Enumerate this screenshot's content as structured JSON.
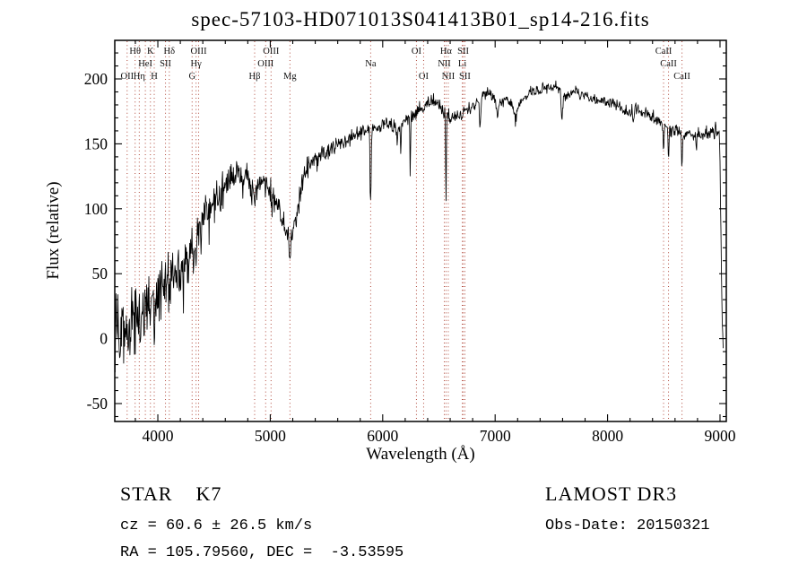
{
  "chart_data": {
    "type": "line",
    "title": "spec-57103-HD071013S041413B01_sp14-216.fits",
    "xlabel": "Wavelength (Å)",
    "ylabel": "Flux (relative)",
    "xlim": [
      3617,
      9056
    ],
    "ylim": [
      -63.8,
      229.7
    ],
    "x_ticks": [
      4000,
      5000,
      6000,
      7000,
      8000,
      9000
    ],
    "y_ticks": [
      -50,
      0,
      50,
      100,
      150,
      200
    ],
    "x_minor_step": 200,
    "y_minor_step": 10,
    "grid": false,
    "legend": false,
    "series": [
      {
        "name": "flux",
        "sample_step": 4,
        "x_start": 3620,
        "x_end": 9028,
        "continuum_points": [
          [
            3620,
            4
          ],
          [
            3700,
            9
          ],
          [
            3780,
            14
          ],
          [
            3860,
            20
          ],
          [
            3940,
            28
          ],
          [
            4000,
            35
          ],
          [
            4080,
            44
          ],
          [
            4160,
            50
          ],
          [
            4240,
            58
          ],
          [
            4320,
            72
          ],
          [
            4400,
            95
          ],
          [
            4480,
            106
          ],
          [
            4560,
            110
          ],
          [
            4640,
            120
          ],
          [
            4720,
            128
          ],
          [
            4780,
            126
          ],
          [
            4830,
            114
          ],
          [
            4880,
            118
          ],
          [
            4940,
            123
          ],
          [
            5000,
            115
          ],
          [
            5060,
            102
          ],
          [
            5120,
            88
          ],
          [
            5175,
            76
          ],
          [
            5230,
            92
          ],
          [
            5280,
            120
          ],
          [
            5340,
            132
          ],
          [
            5420,
            137
          ],
          [
            5500,
            143
          ],
          [
            5600,
            149
          ],
          [
            5700,
            154
          ],
          [
            5800,
            159
          ],
          [
            5880,
            161
          ],
          [
            5960,
            163
          ],
          [
            6040,
            167
          ],
          [
            6120,
            161
          ],
          [
            6200,
            167
          ],
          [
            6280,
            173
          ],
          [
            6360,
            178
          ],
          [
            6440,
            184
          ],
          [
            6500,
            180
          ],
          [
            6550,
            174
          ],
          [
            6610,
            170
          ],
          [
            6700,
            173
          ],
          [
            6800,
            179
          ],
          [
            6900,
            188
          ],
          [
            6960,
            189
          ],
          [
            7020,
            179
          ],
          [
            7100,
            186
          ],
          [
            7180,
            177
          ],
          [
            7260,
            185
          ],
          [
            7350,
            190
          ],
          [
            7450,
            193
          ],
          [
            7540,
            195
          ],
          [
            7620,
            187
          ],
          [
            7700,
            190
          ],
          [
            7800,
            187
          ],
          [
            7900,
            184
          ],
          [
            8000,
            182
          ],
          [
            8100,
            179
          ],
          [
            8180,
            174
          ],
          [
            8260,
            177
          ],
          [
            8340,
            173
          ],
          [
            8420,
            170
          ],
          [
            8500,
            164
          ],
          [
            8580,
            160
          ],
          [
            8660,
            159
          ],
          [
            8740,
            156
          ],
          [
            8820,
            156
          ],
          [
            8900,
            159
          ],
          [
            8960,
            162
          ],
          [
            8995,
            160
          ],
          [
            9005,
            100
          ],
          [
            9018,
            20
          ],
          [
            9028,
            -4
          ]
        ],
        "noise_profile": [
          [
            3620,
            36
          ],
          [
            3750,
            32
          ],
          [
            3900,
            27
          ],
          [
            4050,
            22
          ],
          [
            4200,
            19
          ],
          [
            4350,
            16
          ],
          [
            4500,
            13
          ],
          [
            4700,
            11
          ],
          [
            4900,
            9.5
          ],
          [
            5100,
            8.5
          ],
          [
            5300,
            7.5
          ],
          [
            5500,
            6.5
          ],
          [
            5700,
            6
          ],
          [
            5900,
            5.5
          ],
          [
            6100,
            5
          ],
          [
            6400,
            4.5
          ],
          [
            6800,
            4
          ],
          [
            7200,
            4
          ],
          [
            7600,
            4
          ],
          [
            8000,
            4
          ],
          [
            8400,
            4.5
          ],
          [
            8800,
            5
          ],
          [
            9028,
            5
          ]
        ],
        "absorption_features": [
          {
            "center": 3933,
            "depth": 25,
            "width": 6
          },
          {
            "center": 3968,
            "depth": 22,
            "width": 6
          },
          {
            "center": 4101,
            "depth": 22,
            "width": 5
          },
          {
            "center": 4226,
            "depth": 30,
            "width": 5
          },
          {
            "center": 4340,
            "depth": 18,
            "width": 5
          },
          {
            "center": 4383,
            "depth": 20,
            "width": 5
          },
          {
            "center": 4455,
            "depth": 18,
            "width": 4
          },
          {
            "center": 4755,
            "depth": 14,
            "width": 4
          },
          {
            "center": 4861,
            "depth": 16,
            "width": 5
          },
          {
            "center": 5015,
            "depth": 12,
            "width": 5
          },
          {
            "center": 5172,
            "depth": 16,
            "width": 8
          },
          {
            "center": 5270,
            "depth": 10,
            "width": 4
          },
          {
            "center": 5890,
            "depth": 52,
            "width": 5
          },
          {
            "center": 5896,
            "depth": 28,
            "width": 4
          },
          {
            "center": 6130,
            "depth": 12,
            "width": 5
          },
          {
            "center": 6160,
            "depth": 18,
            "width": 5
          },
          {
            "center": 6245,
            "depth": 46,
            "width": 4
          },
          {
            "center": 6563,
            "depth": 72,
            "width": 4
          },
          {
            "center": 6867,
            "depth": 22,
            "width": 9
          },
          {
            "center": 7020,
            "depth": 10,
            "width": 6
          },
          {
            "center": 7180,
            "depth": 10,
            "width": 12
          },
          {
            "center": 7594,
            "depth": 20,
            "width": 10
          },
          {
            "center": 8230,
            "depth": 12,
            "width": 8
          },
          {
            "center": 8498,
            "depth": 20,
            "width": 6
          },
          {
            "center": 8542,
            "depth": 28,
            "width": 6
          },
          {
            "center": 8662,
            "depth": 24,
            "width": 6
          },
          {
            "center": 8790,
            "depth": 12,
            "width": 5
          },
          {
            "center": 8950,
            "depth": 10,
            "width": 4
          }
        ]
      }
    ],
    "spectral_lines": [
      {
        "label": "OII",
        "wavelength": 3727,
        "row": 3
      },
      {
        "label": "Hθ",
        "wavelength": 3798,
        "row": 1
      },
      {
        "label": "Hη",
        "wavelength": 3835,
        "row": 3
      },
      {
        "label": "HeI",
        "wavelength": 3889,
        "row": 2
      },
      {
        "label": "K",
        "wavelength": 3934,
        "row": 1
      },
      {
        "label": "H",
        "wavelength": 3968,
        "row": 3
      },
      {
        "label": "SII",
        "wavelength": 4068,
        "row": 2
      },
      {
        "label": "Hδ",
        "wavelength": 4102,
        "row": 1
      },
      {
        "label": "G",
        "wavelength": 4305,
        "row": 3
      },
      {
        "label": "Hγ",
        "wavelength": 4340,
        "row": 2
      },
      {
        "label": "OIII",
        "wavelength": 4363,
        "row": 1
      },
      {
        "label": "Hβ",
        "wavelength": 4861,
        "row": 3
      },
      {
        "label": "OIII",
        "wavelength": 4959,
        "row": 2
      },
      {
        "label": "OIII",
        "wavelength": 5007,
        "row": 1
      },
      {
        "label": "Mg",
        "wavelength": 5175,
        "row": 3
      },
      {
        "label": "Na",
        "wavelength": 5893,
        "row": 2
      },
      {
        "label": "OI",
        "wavelength": 6300,
        "row": 1
      },
      {
        "label": "OI",
        "wavelength": 6364,
        "row": 3
      },
      {
        "label": "NII",
        "wavelength": 6548,
        "row": 2
      },
      {
        "label": "Hα",
        "wavelength": 6563,
        "row": 1
      },
      {
        "label": "NII",
        "wavelength": 6583,
        "row": 3
      },
      {
        "label": "Li",
        "wavelength": 6708,
        "row": 2
      },
      {
        "label": "SII",
        "wavelength": 6716,
        "row": 1
      },
      {
        "label": "SII",
        "wavelength": 6731,
        "row": 3
      },
      {
        "label": "CaII",
        "wavelength": 8498,
        "row": 1
      },
      {
        "label": "CaII",
        "wavelength": 8542,
        "row": 2
      },
      {
        "label": "CaII",
        "wavelength": 8662,
        "row": 3
      }
    ]
  },
  "annotations": {
    "class_label": "STAR    K7",
    "survey": "LAMOST DR3",
    "velocity": "cz = 60.6 ± 26.5 km/s",
    "coordinates": "RA = 105.79560, DEC =  -3.53595",
    "obs_date": "Obs-Date: 20150321"
  },
  "colors": {
    "spectrum": "#000000",
    "frame": "#000000",
    "marker_line": "#b0483a",
    "line_label": "#111111",
    "background": "#ffffff"
  }
}
